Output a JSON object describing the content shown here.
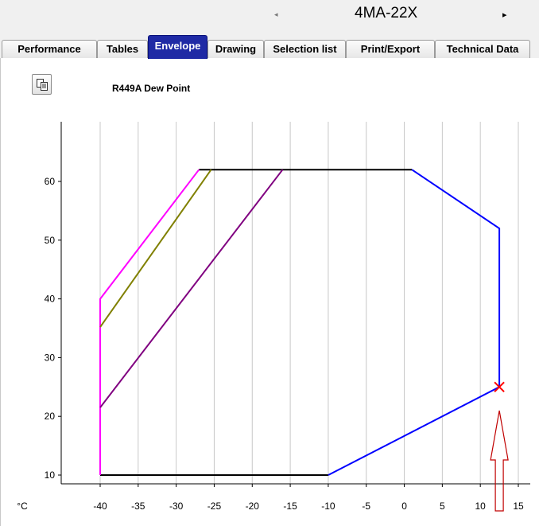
{
  "header": {
    "model": "4MA-22X",
    "prev_glyph": "◂",
    "next_glyph": "▸"
  },
  "tabs": [
    {
      "label": "Performance",
      "active": false
    },
    {
      "label": "Tables",
      "active": false
    },
    {
      "label": "Envelope",
      "active": true
    },
    {
      "label": "Drawing",
      "active": false
    },
    {
      "label": "Selection list",
      "active": false
    },
    {
      "label": "Print/Export",
      "active": false
    },
    {
      "label": "Technical Data",
      "active": false
    }
  ],
  "toolbar": {
    "copy_icon": "copy-icon"
  },
  "colors": {
    "active_tab": "#1f2aa5",
    "boundary": "#000000",
    "blue_limit": "#0000ff",
    "magenta_limit": "#ff00ff",
    "olive_limit": "#808000",
    "purple_limit": "#800080",
    "marker": "#ff0000",
    "arrow": "#c00000"
  },
  "chart_data": {
    "type": "line",
    "title": "R449A Dew Point",
    "xlabel": "°C",
    "ylabel": "",
    "xlim": [
      -45,
      17
    ],
    "ylim": [
      8,
      72
    ],
    "x_ticks": [
      -40,
      -35,
      -30,
      -25,
      -20,
      -15,
      -10,
      -5,
      0,
      5,
      10,
      15
    ],
    "y_ticks": [
      10,
      20,
      30,
      40,
      50,
      60
    ],
    "grid": "vertical",
    "series": [
      {
        "color": "#000000",
        "points": [
          [
            -40,
            10
          ],
          [
            -10,
            10
          ]
        ]
      },
      {
        "color": "#000000",
        "points": [
          [
            -27,
            62
          ],
          [
            1,
            62
          ]
        ]
      },
      {
        "color": "#0000ff",
        "points": [
          [
            -10,
            10
          ],
          [
            12.5,
            25
          ],
          [
            12.5,
            52
          ],
          [
            1,
            62
          ]
        ]
      },
      {
        "color": "#ff00ff",
        "points": [
          [
            -40,
            10
          ],
          [
            -40,
            40
          ],
          [
            -27,
            62
          ]
        ]
      },
      {
        "color": "#808000",
        "points": [
          [
            -40,
            35.2
          ],
          [
            -25.4,
            62
          ]
        ]
      },
      {
        "color": "#800080",
        "points": [
          [
            -40,
            21.5
          ],
          [
            -16,
            62
          ]
        ]
      }
    ],
    "marker": {
      "x": 12.5,
      "y": 25,
      "shape": "x"
    },
    "annotation_arrow_x": 12.5
  }
}
